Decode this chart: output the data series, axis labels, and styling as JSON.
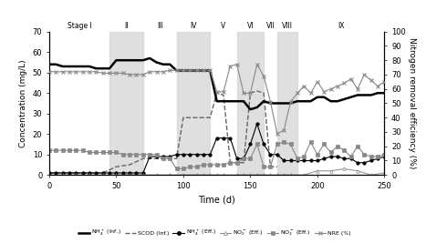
{
  "stages": [
    {
      "label": "Stage I",
      "x_start": 0,
      "x_end": 45
    },
    {
      "label": "II",
      "x_start": 45,
      "x_end": 70
    },
    {
      "label": "III",
      "x_start": 70,
      "x_end": 95
    },
    {
      "label": "IV",
      "x_start": 95,
      "x_end": 120
    },
    {
      "label": "V",
      "x_start": 120,
      "x_end": 140
    },
    {
      "label": "VI",
      "x_start": 140,
      "x_end": 160
    },
    {
      "label": "VII",
      "x_start": 160,
      "x_end": 170
    },
    {
      "label": "VIII",
      "x_start": 170,
      "x_end": 185
    },
    {
      "label": "IX",
      "x_start": 185,
      "x_end": 250
    }
  ],
  "stage_shaded": [
    false,
    true,
    false,
    true,
    false,
    true,
    false,
    true,
    false
  ],
  "xlim": [
    0,
    250
  ],
  "ylim_left": [
    0,
    70
  ],
  "ylim_right": [
    0,
    100
  ],
  "yticks_left": [
    0,
    10,
    20,
    30,
    40,
    50,
    60,
    70
  ],
  "yticks_right": [
    0,
    10,
    20,
    30,
    40,
    50,
    60,
    70,
    80,
    90,
    100
  ],
  "xlabel": "Time (d)",
  "ylabel_left": "Concentration (mg/L)",
  "ylabel_right": "Nitrogen removal efficiency (%)",
  "NH4_inf_x": [
    0,
    5,
    10,
    15,
    20,
    25,
    30,
    35,
    40,
    45,
    50,
    55,
    60,
    65,
    70,
    75,
    80,
    85,
    90,
    95,
    100,
    105,
    110,
    115,
    120,
    125,
    130,
    135,
    140,
    145,
    150,
    155,
    160,
    165,
    170,
    175,
    180,
    185,
    190,
    195,
    200,
    205,
    210,
    215,
    220,
    225,
    230,
    235,
    240,
    245,
    250
  ],
  "NH4_inf_y": [
    54,
    54,
    53,
    53,
    53,
    53,
    53,
    52,
    52,
    52,
    56,
    56,
    56,
    56,
    56,
    57,
    55,
    54,
    54,
    51,
    51,
    51,
    51,
    51,
    51,
    36,
    36,
    36,
    36,
    36,
    32,
    33,
    36,
    35,
    35,
    35,
    35,
    36,
    36,
    36,
    38,
    38,
    36,
    36,
    37,
    38,
    39,
    39,
    39,
    40,
    40
  ],
  "SCOD_inf_x": [
    0,
    10,
    20,
    30,
    40,
    50,
    60,
    70,
    80,
    90,
    95,
    100,
    110,
    120,
    125,
    130,
    135,
    140,
    145,
    150,
    155,
    160,
    165,
    170
  ],
  "SCOD_inf_y": [
    1,
    1,
    1,
    1,
    1,
    4,
    5,
    8,
    8,
    8,
    8,
    28,
    28,
    28,
    40,
    39,
    6,
    6,
    6,
    40,
    41,
    40,
    4,
    4
  ],
  "NH4_eff_x": [
    0,
    5,
    10,
    15,
    20,
    25,
    30,
    35,
    40,
    45,
    50,
    55,
    60,
    65,
    70,
    75,
    80,
    85,
    90,
    95,
    100,
    105,
    110,
    115,
    120,
    125,
    130,
    135,
    140,
    145,
    150,
    155,
    160,
    165,
    170,
    175,
    180,
    185,
    190,
    195,
    200,
    205,
    210,
    215,
    220,
    225,
    230,
    235,
    240,
    245,
    250
  ],
  "NH4_eff_y": [
    1,
    1,
    1,
    1,
    1,
    1,
    1,
    1,
    1,
    1,
    1,
    1,
    1,
    1,
    1,
    9,
    9,
    9,
    9,
    10,
    10,
    10,
    10,
    10,
    10,
    18,
    18,
    18,
    8,
    8,
    15,
    25,
    15,
    10,
    10,
    7,
    7,
    7,
    7,
    7,
    7,
    8,
    9,
    9,
    8,
    8,
    6,
    6,
    7,
    8,
    9
  ],
  "NO2_eff_x": [
    0,
    10,
    20,
    30,
    40,
    50,
    60,
    70,
    80,
    90,
    100,
    110,
    115,
    120,
    125,
    130,
    140,
    145,
    150,
    155,
    160,
    165,
    170,
    175,
    180,
    190,
    200,
    210,
    220,
    230,
    240,
    250
  ],
  "NO2_eff_y": [
    0,
    0,
    0,
    0,
    0,
    0,
    0,
    0,
    0,
    0,
    0,
    0,
    0,
    0,
    0,
    0,
    0,
    0,
    0,
    0,
    0,
    0,
    0,
    0,
    0,
    0,
    2,
    2,
    3,
    2,
    0,
    1
  ],
  "NO3_eff_x": [
    0,
    5,
    10,
    15,
    20,
    25,
    30,
    35,
    40,
    45,
    50,
    55,
    60,
    65,
    70,
    75,
    80,
    85,
    90,
    95,
    100,
    105,
    110,
    115,
    120,
    125,
    130,
    135,
    140,
    145,
    150,
    155,
    160,
    165,
    170,
    175,
    180,
    185,
    190,
    195,
    200,
    205,
    210,
    215,
    220,
    225,
    230,
    235,
    240,
    245,
    250
  ],
  "NO3_eff_y": [
    12,
    12,
    12,
    12,
    12,
    12,
    11,
    11,
    11,
    11,
    11,
    10,
    10,
    10,
    10,
    10,
    10,
    8,
    8,
    3,
    3,
    4,
    4,
    5,
    5,
    5,
    5,
    6,
    6,
    8,
    8,
    15,
    4,
    4,
    15,
    16,
    15,
    8,
    9,
    16,
    10,
    15,
    11,
    14,
    12,
    9,
    14,
    10,
    9,
    9,
    10
  ],
  "NRE_x": [
    0,
    5,
    10,
    15,
    20,
    25,
    30,
    35,
    40,
    45,
    50,
    55,
    60,
    65,
    70,
    75,
    80,
    85,
    90,
    95,
    100,
    105,
    110,
    115,
    120,
    125,
    130,
    135,
    140,
    145,
    150,
    155,
    160,
    165,
    170,
    175,
    180,
    185,
    190,
    195,
    200,
    205,
    210,
    215,
    220,
    225,
    230,
    235,
    240,
    245,
    250
  ],
  "NRE_y": [
    72,
    72,
    72,
    72,
    72,
    72,
    72,
    72,
    71,
    71,
    71,
    71,
    70,
    70,
    70,
    72,
    72,
    72,
    73,
    73,
    73,
    73,
    73,
    73,
    73,
    58,
    58,
    76,
    77,
    57,
    57,
    77,
    69,
    51,
    29,
    31,
    51,
    57,
    62,
    57,
    65,
    58,
    60,
    62,
    64,
    67,
    60,
    70,
    66,
    62,
    65
  ],
  "shade_color": "#d8d8d8",
  "line_NH4_inf_color": "black",
  "line_SCOD_color": "#666666",
  "line_NH4_eff_color": "black",
  "line_NO2_color": "#888888",
  "line_NO3_color": "#888888",
  "line_NRE_color": "#888888"
}
